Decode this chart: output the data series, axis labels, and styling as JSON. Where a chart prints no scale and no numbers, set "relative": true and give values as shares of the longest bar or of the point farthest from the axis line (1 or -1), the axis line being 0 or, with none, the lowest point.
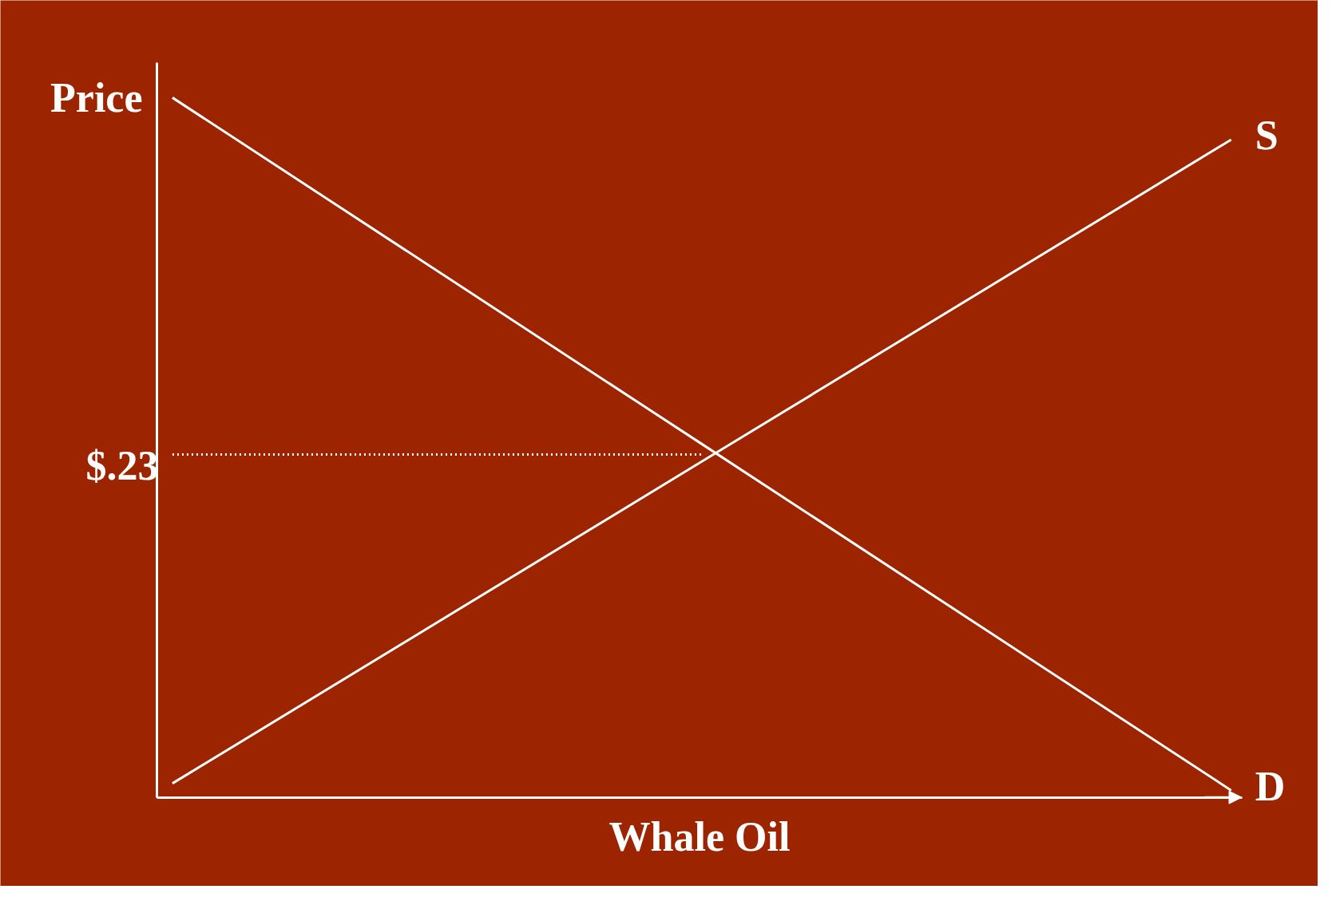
{
  "chart_data": {
    "type": "line",
    "relative": true,
    "xlabel": "Whale Oil",
    "ylabel": "Price",
    "categories": [
      null,
      null,
      null
    ],
    "series": [
      {
        "name": "S",
        "color": "#ffffff",
        "values": [
          0.02,
          0.48,
          0.94
        ]
      },
      {
        "name": "D",
        "color": "#ffffff",
        "values": [
          1,
          0.505,
          0.01
        ]
      },
      {
        "color": "#ffffff",
        "values": [
          0.49,
          0.49,
          null
        ],
        "line_style": "dotted"
      }
    ],
    "annotations": [
      "$.23"
    ],
    "marker": "none",
    "line_style": "solid"
  }
}
